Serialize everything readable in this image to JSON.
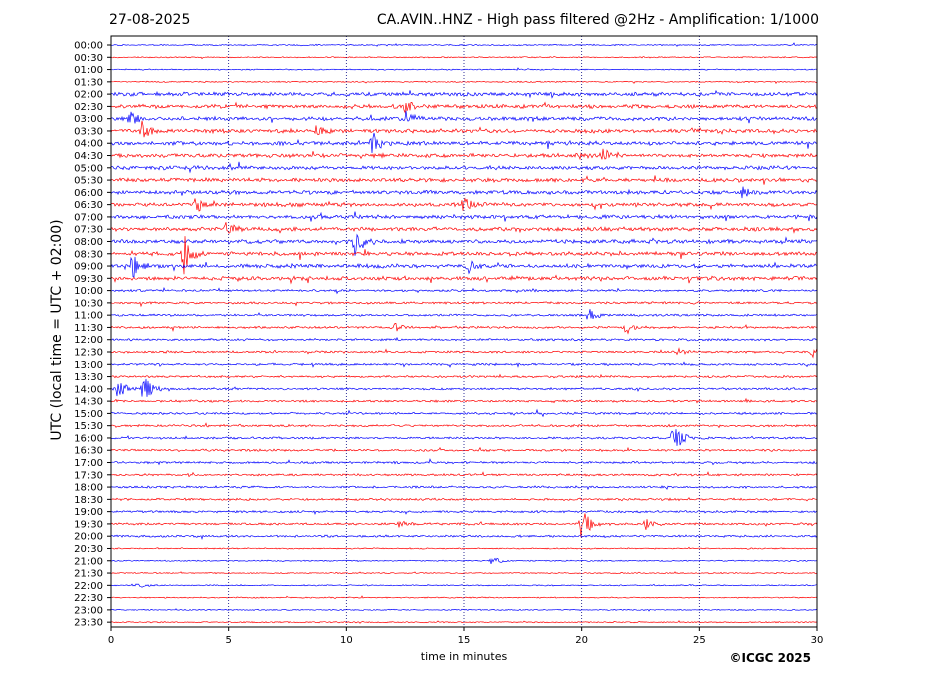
{
  "header": {
    "date": "27-08-2025",
    "title": "CA.AVIN..HNZ - High pass filtered @2Hz - Amplification: 1/1000"
  },
  "footer": {
    "copyright": "©ICGC 2025"
  },
  "colors": {
    "even_trace": "#ff0000",
    "odd_trace": "#0000ff",
    "frame": "#000000",
    "grid": "#000080"
  },
  "chart_data": {
    "type": "line",
    "xlabel": "time in minutes",
    "ylabel": "UTC (local time = UTC + 02:00)",
    "xlim": [
      0,
      30
    ],
    "xticks": [
      0,
      5,
      10,
      15,
      20,
      25,
      30
    ],
    "grid": "vertical dotted lines at x ticks",
    "row_labels": [
      "00:00",
      "00:30",
      "01:00",
      "01:30",
      "02:00",
      "02:30",
      "03:00",
      "03:30",
      "04:00",
      "04:30",
      "05:00",
      "05:30",
      "06:00",
      "06:30",
      "07:00",
      "07:30",
      "08:00",
      "08:30",
      "09:00",
      "09:30",
      "10:00",
      "10:30",
      "11:00",
      "11:30",
      "12:00",
      "12:30",
      "13:00",
      "13:30",
      "14:00",
      "14:30",
      "15:00",
      "15:30",
      "16:00",
      "16:30",
      "17:00",
      "17:30",
      "18:00",
      "18:30",
      "19:00",
      "19:30",
      "20:00",
      "20:30",
      "21:00",
      "21:30",
      "22:00",
      "22:30",
      "23:00",
      "23:30"
    ],
    "row_colors": "alternating blue/red by row",
    "events": [
      {
        "row": "02:30",
        "minute": 12.5,
        "amp": 0.5
      },
      {
        "row": "03:00",
        "minute": 0.8,
        "amp": 0.6
      },
      {
        "row": "03:00",
        "minute": 12.5,
        "amp": 0.8
      },
      {
        "row": "03:30",
        "minute": 1.3,
        "amp": 0.9
      },
      {
        "row": "03:30",
        "minute": 8.7,
        "amp": 0.6
      },
      {
        "row": "04:00",
        "minute": 11.1,
        "amp": 1.0
      },
      {
        "row": "04:30",
        "minute": 19.9,
        "amp": 0.5
      },
      {
        "row": "04:30",
        "minute": 20.9,
        "amp": 0.6
      },
      {
        "row": "06:00",
        "minute": 26.8,
        "amp": 0.5
      },
      {
        "row": "06:30",
        "minute": 3.6,
        "amp": 1.0
      },
      {
        "row": "06:30",
        "minute": 15.0,
        "amp": 0.6
      },
      {
        "row": "07:30",
        "minute": 4.9,
        "amp": 0.6
      },
      {
        "row": "08:00",
        "minute": 10.4,
        "amp": 1.8
      },
      {
        "row": "08:30",
        "minute": 3.1,
        "amp": 1.8
      },
      {
        "row": "09:00",
        "minute": 0.9,
        "amp": 1.2
      },
      {
        "row": "09:00",
        "minute": 15.2,
        "amp": 0.6
      },
      {
        "row": "11:00",
        "minute": 20.3,
        "amp": 0.7
      },
      {
        "row": "11:30",
        "minute": 12.0,
        "amp": 0.5
      },
      {
        "row": "11:30",
        "minute": 21.9,
        "amp": 0.5
      },
      {
        "row": "12:30",
        "minute": 24.0,
        "amp": 0.4
      },
      {
        "row": "12:30",
        "minute": 29.8,
        "amp": 0.5
      },
      {
        "row": "14:00",
        "minute": 0.2,
        "amp": 1.6
      },
      {
        "row": "14:00",
        "minute": 1.4,
        "amp": 1.4
      },
      {
        "row": "16:00",
        "minute": 23.9,
        "amp": 1.6
      },
      {
        "row": "19:30",
        "minute": 20.0,
        "amp": 1.6
      },
      {
        "row": "19:30",
        "minute": 22.7,
        "amp": 0.5
      },
      {
        "row": "19:30",
        "minute": 12.3,
        "amp": 0.4
      },
      {
        "row": "21:00",
        "minute": 16.2,
        "amp": 0.4
      },
      {
        "row": "22:00",
        "minute": 1.0,
        "amp": 0.4
      }
    ]
  }
}
